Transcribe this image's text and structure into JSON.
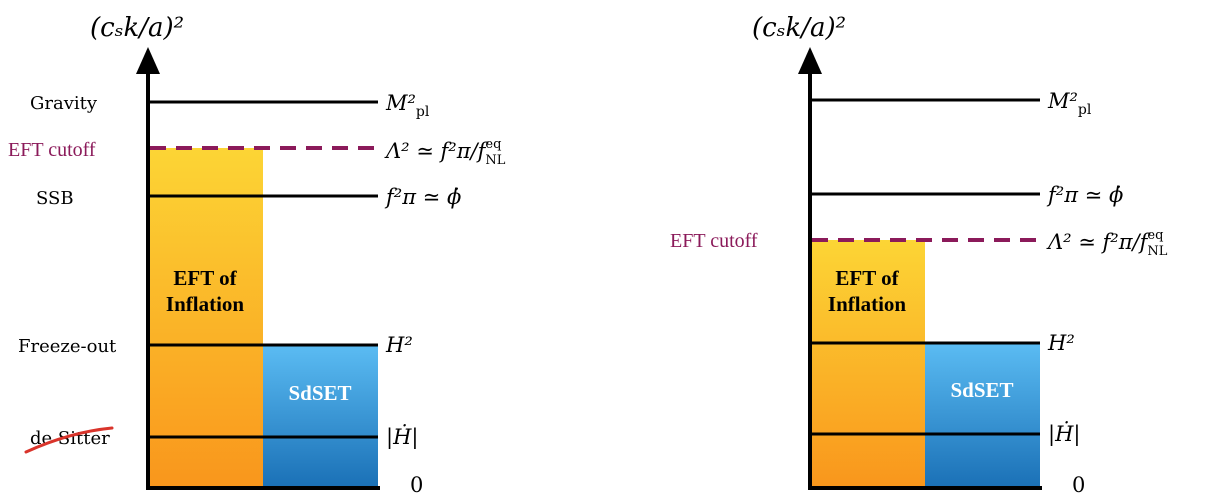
{
  "left": {
    "axis_label": "(cₛk/a)²",
    "levels": {
      "gravity": {
        "name": "Gravity",
        "math": "M²",
        "sub": "pl"
      },
      "cutoff": {
        "name": "EFT cutoff",
        "math": "Λ² ≃ f²π/f",
        "sup": "eq",
        "sub": "NL"
      },
      "ssb": {
        "name": "SSB",
        "math": "f²π ≃ ϕ̇"
      },
      "freeze": {
        "name": "Freeze-out",
        "math": "H²"
      },
      "desitter": {
        "name": "de Sitter",
        "math": "|Ḣ|"
      },
      "zero": {
        "math": "0"
      }
    },
    "eft_box": {
      "line1": "EFT of",
      "line2": "Inflation"
    },
    "sdset_box": {
      "label": "SdSET"
    }
  },
  "right": {
    "axis_label": "(cₛk/a)²",
    "levels": {
      "gravity": {
        "math": "M²",
        "sub": "pl"
      },
      "ssb": {
        "math": "f²π ≃ ϕ̇"
      },
      "cutoff": {
        "name": "EFT cutoff",
        "math": "Λ² ≃ f²π/f",
        "sup": "eq",
        "sub": "NL"
      },
      "freeze": {
        "math": "H²"
      },
      "desitter": {
        "math": "|Ḣ|"
      },
      "zero": {
        "math": "0"
      }
    },
    "eft_box": {
      "line1": "EFT of",
      "line2": "Inflation"
    },
    "sdset_box": {
      "label": "SdSET"
    }
  },
  "colors": {
    "orange_top": "#fcd535",
    "orange_bottom": "#f9961c",
    "blue_top": "#5bbcf3",
    "blue_bottom": "#1a70b6",
    "cutoff": "#8b1a5a"
  }
}
